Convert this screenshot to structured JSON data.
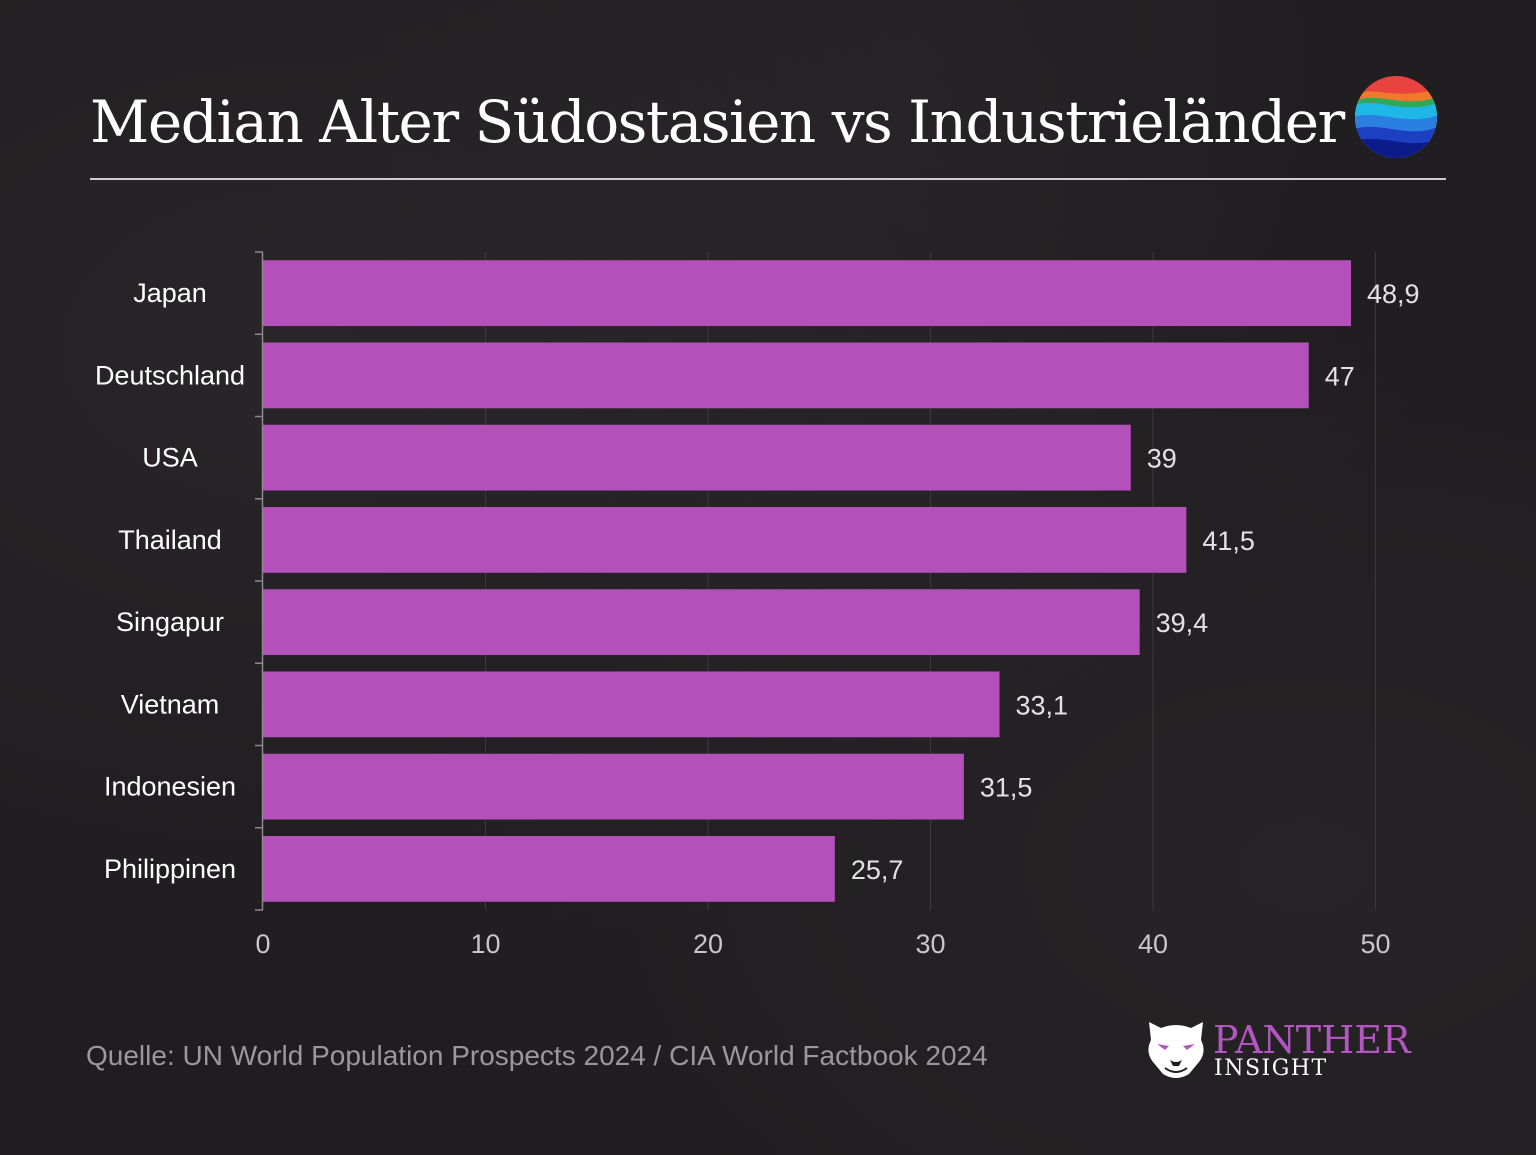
{
  "title": "Median Alter Südostasien vs Industrieländer",
  "source": "Quelle: UN World Population Prospects 2024 / CIA World Factbook 2024",
  "logo": {
    "brand": "PANTHER",
    "sub": "INSIGHT"
  },
  "colors": {
    "background": "#1f1d1f",
    "bar": "#b450ba",
    "text": "#ffffff",
    "muted": "#9b979c",
    "grid": "#3c383d"
  },
  "icons": [
    "globe-waves-icon",
    "panther-head-icon"
  ],
  "chart_data": {
    "type": "bar",
    "orientation": "horizontal",
    "categories": [
      "Japan",
      "Deutschland",
      "USA",
      "Thailand",
      "Singapur",
      "Vietnam",
      "Indonesien",
      "Philippinen"
    ],
    "values": [
      48.9,
      47,
      39,
      41.5,
      39.4,
      33.1,
      31.5,
      25.7
    ],
    "value_labels": [
      "48,9",
      "47",
      "39",
      "41,5",
      "39,4",
      "33,1",
      "31,5",
      "25,7"
    ],
    "xlim": [
      0,
      50
    ],
    "xticks": [
      0,
      10,
      20,
      30,
      40,
      50
    ],
    "xtick_labels": [
      "0",
      "10",
      "20",
      "30",
      "40",
      "50"
    ],
    "grid": "vertical",
    "legend": "none"
  }
}
